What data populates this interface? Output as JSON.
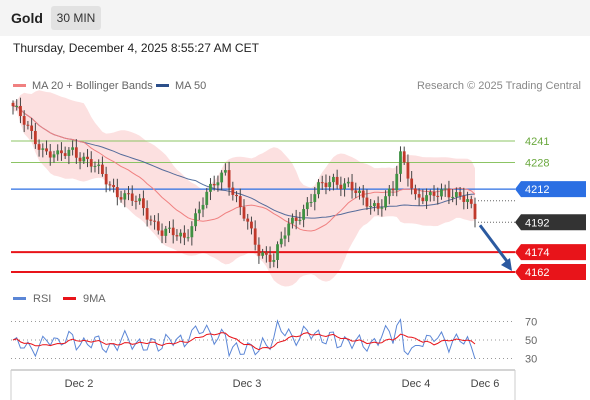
{
  "header": {
    "title": "Gold",
    "timeframe": "30 MIN"
  },
  "timestamp": "Thursday, December 4, 2025 8:55:27 AM CET",
  "legend": {
    "ma20": {
      "label": "MA 20 + Bollinger Bands",
      "color": "#f08080"
    },
    "ma50": {
      "label": "MA 50",
      "color": "#2c4f8a"
    },
    "research": "Research © 2025 Trading Central"
  },
  "chart_data": [
    {
      "type": "line",
      "panel": "price",
      "ylim": [
        4155,
        4275
      ],
      "x_ticks": [
        "Dec 2",
        "Dec 3",
        "Dec 4",
        "Dec 6"
      ],
      "series": [
        {
          "name": "MA 20 + Bollinger Bands"
        },
        {
          "name": "MA 50"
        }
      ],
      "levels": [
        {
          "value": 4241,
          "label": "4241",
          "kind": "resistance",
          "color": "#8cc464"
        },
        {
          "value": 4228,
          "label": "4228",
          "kind": "resistance",
          "color": "#8cc464"
        },
        {
          "value": 4212,
          "label": "4212",
          "kind": "pivot",
          "color": "#2b6fe3"
        },
        {
          "value": 4192,
          "label": "4192",
          "kind": "last_price",
          "color": "#333333"
        },
        {
          "value": 4174,
          "label": "4174",
          "kind": "support",
          "color": "#e8141a"
        },
        {
          "value": 4162,
          "label": "4162",
          "kind": "support",
          "color": "#e8141a"
        }
      ],
      "forecast_arrow": {
        "from": 4192,
        "to": 4162,
        "color": "#2c5aa0"
      }
    },
    {
      "type": "line",
      "panel": "rsi",
      "legend": [
        {
          "name": "RSI",
          "color": "#5b86d6"
        },
        {
          "name": "9MA",
          "color": "#e8141a"
        }
      ],
      "y_ticks": [
        "70",
        "50",
        "30"
      ],
      "ylim": [
        20,
        80
      ]
    }
  ]
}
